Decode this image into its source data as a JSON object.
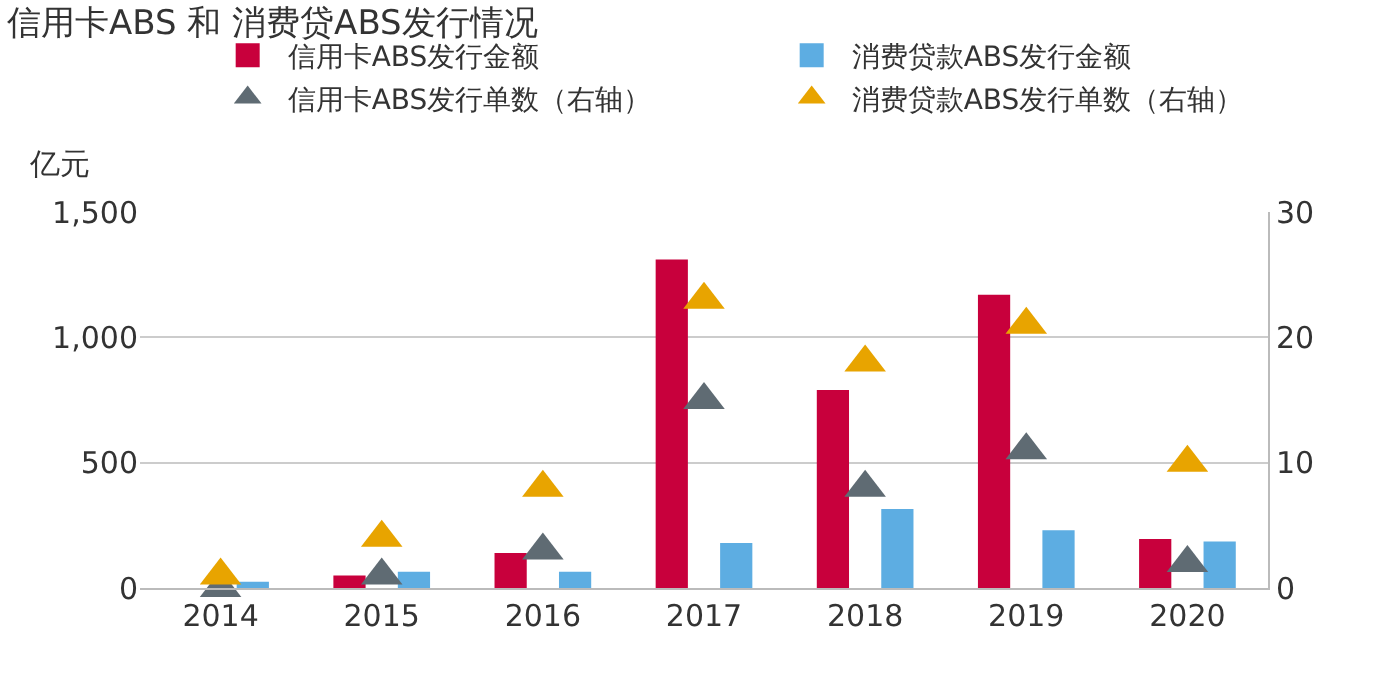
{
  "chart_data": {
    "type": "bar",
    "title": "信用卡ABS 和 消费贷ABS发行情况",
    "ylabel": "亿元",
    "categories": [
      "2014",
      "2015",
      "2016",
      "2017",
      "2018",
      "2019",
      "2020"
    ],
    "series": [
      {
        "name": "信用卡ABS发行金额",
        "color": "#c8003c",
        "values": [
          0,
          50,
          140,
          1310,
          790,
          1170,
          195
        ]
      },
      {
        "name": "消费贷款ABS发行金额",
        "color": "#5dade2",
        "values": [
          25,
          65,
          65,
          180,
          315,
          230,
          185
        ]
      },
      {
        "name": "信用卡ABS发行单数（右轴）",
        "type": "scatter",
        "axis": "y2",
        "marker": "triangle",
        "color": "#5f6b73",
        "values": [
          0,
          1,
          3,
          15,
          8,
          11,
          2
        ]
      },
      {
        "name": "消费贷款ABS发行单数（右轴）",
        "type": "scatter",
        "axis": "y2",
        "marker": "triangle",
        "color": "#e8a400",
        "values": [
          1,
          4,
          8,
          23,
          18,
          21,
          10
        ]
      }
    ],
    "ylim": [
      0,
      1500
    ],
    "yticks": [
      {
        "value": 0,
        "label": "0"
      },
      {
        "value": 500,
        "label": "500"
      },
      {
        "value": 1000,
        "label": "1,000"
      },
      {
        "value": 1500,
        "label": "1,500"
      }
    ],
    "y2lim": [
      0,
      30
    ],
    "y2ticks": [
      0,
      10,
      20,
      30
    ],
    "grid": "y",
    "legend": "top"
  }
}
